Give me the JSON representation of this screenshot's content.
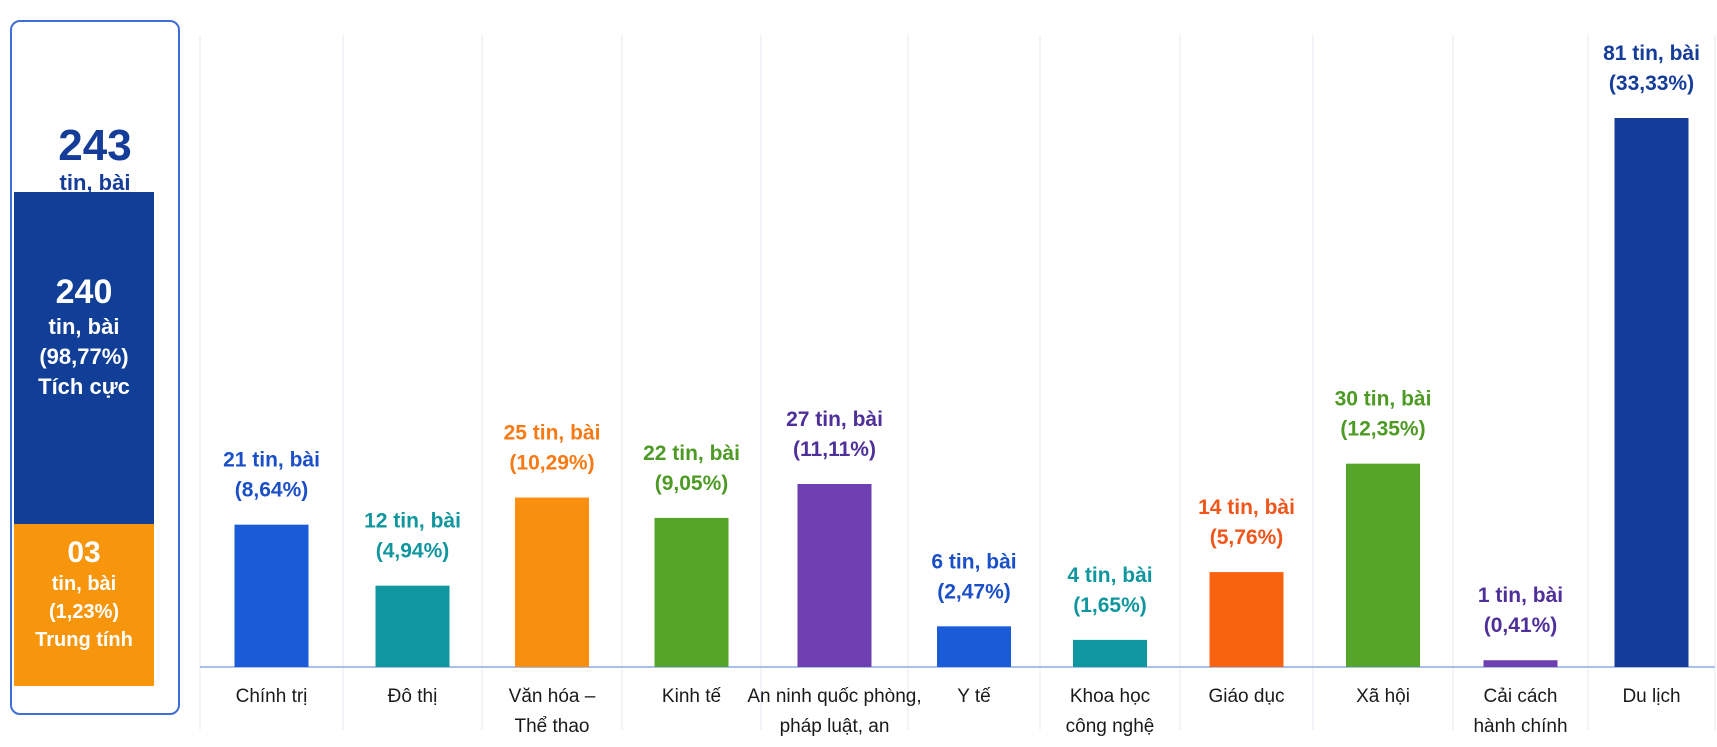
{
  "summary": {
    "total_count": "243",
    "total_unit": "tin, bài",
    "positive": {
      "count": "240",
      "unit": "tin, bài",
      "percent": "(98,77%)",
      "label": "Tích cực"
    },
    "neutral": {
      "count": "03",
      "unit": "tin, bài",
      "percent": "(1,23%)",
      "label": "Trung tính"
    },
    "colors": {
      "positive": "#113f98",
      "neutral": "#f7960d",
      "border": "#3f6fd6",
      "total_text": "#143c98"
    }
  },
  "chart_data": {
    "type": "bar",
    "title": "",
    "xlabel": "",
    "ylabel": "",
    "ylim": [
      0,
      81
    ],
    "grid": false,
    "categories": [
      [
        "Chính trị"
      ],
      [
        "Đô thị"
      ],
      [
        "Văn hóa –",
        "Thể thao"
      ],
      [
        "Kinh tế"
      ],
      [
        "An ninh quốc phòng,",
        "pháp luật, an"
      ],
      [
        "Y tế"
      ],
      [
        "Khoa học",
        "công nghệ"
      ],
      [
        "Giáo dục"
      ],
      [
        "Xã hội"
      ],
      [
        "Cải cách",
        "hành chính"
      ],
      [
        "Du lịch"
      ]
    ],
    "values": [
      21,
      12,
      25,
      22,
      27,
      6,
      4,
      14,
      30,
      1,
      81
    ],
    "value_labels": [
      [
        "21 tin, bài",
        "(8,64%)"
      ],
      [
        "12 tin, bài",
        "(4,94%)"
      ],
      [
        "25 tin, bài",
        "(10,29%)"
      ],
      [
        "22 tin, bài",
        "(9,05%)"
      ],
      [
        "27 tin, bài",
        "(11,11%)"
      ],
      [
        "6 tin, bài",
        "(2,47%)"
      ],
      [
        "4 tin, bài",
        "(1,65%)"
      ],
      [
        "14 tin, bài",
        "(5,76%)"
      ],
      [
        "30 tin, bài",
        "(12,35%)"
      ],
      [
        "1 tin, bài",
        "(0,41%)"
      ],
      [
        "81 tin, bài",
        "(33,33%)"
      ]
    ],
    "bar_colors": [
      "#1a5bd8",
      "#10969e",
      "#f98e0f",
      "#54a52a",
      "#6d3fb0",
      "#1a5bd8",
      "#10969e",
      "#f9620f",
      "#54a52a",
      "#6d3fb0",
      "#143c98"
    ],
    "label_colors": [
      "#1a4fc8",
      "#10969e",
      "#f77a14",
      "#4d9a25",
      "#4f2f9a",
      "#1a4fc8",
      "#10969e",
      "#f0561a",
      "#4d9a25",
      "#4f2f9a",
      "#143c98"
    ]
  }
}
